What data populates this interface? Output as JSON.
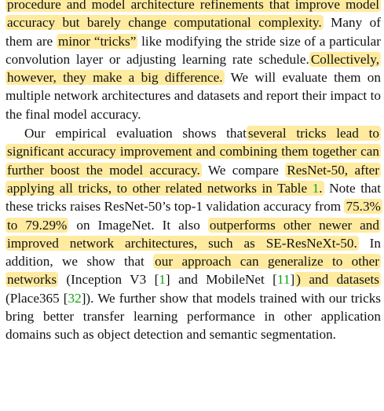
{
  "p1": {
    "h1": "procedure and model architecture refinements that improve model accuracy but barely change computational complexity.",
    "t1": " Many of them are ",
    "h2": "minor “tricks”",
    "t2": " like modifying the stride size of a particular convolution layer or adjusting learning rate schedule.",
    "h3": "Collectively, however, they make a big difference.",
    "t3": " We will evaluate them on multiple network architectures and datasets and report their impact to the final model accuracy."
  },
  "p2": {
    "t1": "Our empirical evaluation shows that",
    "h1": "several tricks lead to significant accuracy improvement and combining them together can further boost the model accuracy.",
    "t2": " We compare ",
    "h2": "ResNet-50, after applying all tricks, to other related networks in Table ",
    "ref_table": "1",
    "h2_end": ".",
    "t3": " Note that these tricks raises ResNet-50’s top-1 validation accuracy from ",
    "h3": "75.3% to 79.29%",
    "t4": " on ImageNet. It also ",
    "h4": "outperforms other newer and improved network architectures, such as SE-ResNeXt-50.",
    "t5": " In addition, we show that ",
    "h5": "our approach can generalize to other networks",
    "t6": " (Inception V3 [",
    "ref_inception": "1",
    "t7": "] and MobileNet [",
    "ref_mobilenet": "11",
    "t8": "]",
    "h6": ") and datasets",
    "t9": " (Place365 [",
    "ref_place": "32",
    "t10": "]). We further show that models trained with our tricks bring better transfer learning performance in other application domains such as object detection and semantic segmentation."
  }
}
